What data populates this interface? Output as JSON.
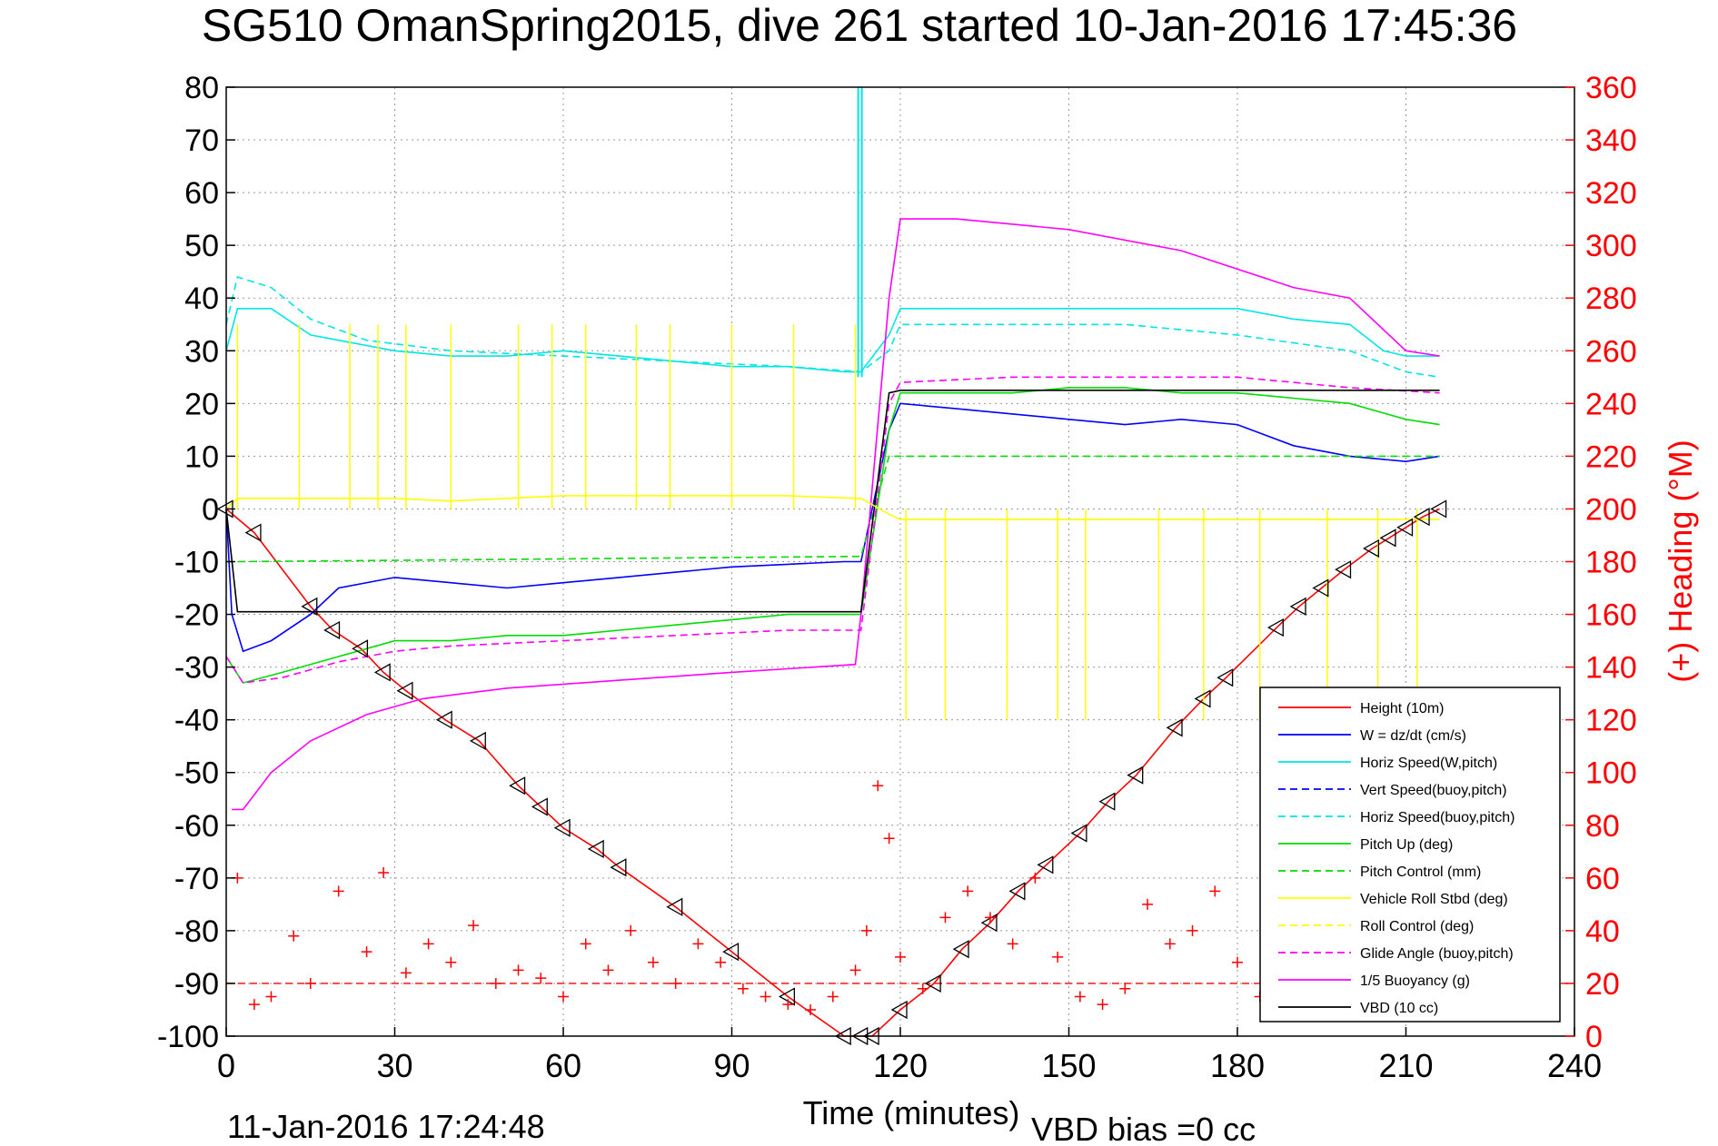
{
  "chart_data": {
    "type": "line",
    "title": "SG510 OmanSpring2015, dive 261 started 10-Jan-2016 17:45:36",
    "xlabel": "Time (minutes)",
    "ylabel": "",
    "ylabel_right": "(+) Heading (°M)",
    "footer_left": "11-Jan-2016 17:24:48",
    "footer_right": "VBD bias =0 cc",
    "xlim": [
      0,
      240
    ],
    "ylim": [
      -100,
      80
    ],
    "ylim_right": [
      0,
      360
    ],
    "grid": true,
    "legend_position": "bottom-right",
    "x_ticks": [
      "0",
      "30",
      "60",
      "90",
      "120",
      "150",
      "180",
      "210",
      "240"
    ],
    "y_ticks": [
      "80",
      "70",
      "60",
      "50",
      "40",
      "30",
      "20",
      "10",
      "0",
      "-10",
      "-20",
      "-30",
      "-40",
      "-50",
      "-60",
      "-70",
      "-80",
      "-90",
      "-100"
    ],
    "y_ticks_right": [
      "360",
      "340",
      "320",
      "300",
      "280",
      "260",
      "240",
      "220",
      "200",
      "180",
      "160",
      "140",
      "120",
      "100",
      "80",
      "60",
      "40",
      "20",
      "0"
    ],
    "legend": [
      {
        "name": "Height (10m)",
        "color": "#ff0000",
        "style": "solid"
      },
      {
        "name": "W = dz/dt (cm/s)",
        "color": "#0000ff",
        "style": "solid"
      },
      {
        "name": "Horiz Speed(W,pitch)",
        "color": "#00e5e5",
        "style": "solid"
      },
      {
        "name": "Vert Speed(buoy,pitch)",
        "color": "#0000ff",
        "style": "dashed"
      },
      {
        "name": "Horiz Speed(buoy,pitch)",
        "color": "#00e5e5",
        "style": "dashed"
      },
      {
        "name": "Pitch Up (deg)",
        "color": "#00dd00",
        "style": "solid"
      },
      {
        "name": "Pitch Control (mm)",
        "color": "#00dd00",
        "style": "dashed"
      },
      {
        "name": "Vehicle Roll Stbd (deg)",
        "color": "#ffff00",
        "style": "solid"
      },
      {
        "name": "Roll Control (deg)",
        "color": "#ffff00",
        "style": "dashed"
      },
      {
        "name": "Glide Angle (buoy,pitch)",
        "color": "#ff00ff",
        "style": "dashed"
      },
      {
        "name": "1/5 Buoyancy (g)",
        "color": "#ff00ff",
        "style": "solid"
      },
      {
        "name": "VBD (10 cc)",
        "color": "#000000",
        "style": "solid"
      }
    ],
    "series": [
      {
        "name": "Height (10m)",
        "axis": "left",
        "x": [
          0,
          5,
          15,
          19,
          24,
          28,
          32,
          39,
          45,
          52,
          56,
          60,
          66,
          70,
          80,
          90,
          100,
          110,
          113,
          115,
          120,
          126,
          131,
          136,
          141,
          146,
          152,
          157,
          162,
          169,
          174,
          178,
          187,
          191,
          195,
          199,
          204,
          207,
          210,
          213,
          216
        ],
        "y": [
          0,
          -4.5,
          -18.5,
          -23,
          -26.5,
          -31,
          -34.5,
          -40,
          -44,
          -52.5,
          -56.5,
          -60.5,
          -64.5,
          -68,
          -75.5,
          -84,
          -92.5,
          -100,
          -100,
          -100,
          -95,
          -90,
          -83.5,
          -78.5,
          -72.5,
          -67.5,
          -61.5,
          -55.5,
          -50.5,
          -41.5,
          -36,
          -32,
          -22.5,
          -18.5,
          -15,
          -11.5,
          -7.5,
          -5.5,
          -3.5,
          -1.5,
          0
        ]
      },
      {
        "name": "W = dz/dt (cm/s)",
        "axis": "left",
        "x": [
          0,
          1,
          3,
          8,
          15,
          20,
          30,
          40,
          50,
          60,
          70,
          80,
          90,
          100,
          110,
          113,
          118,
          120,
          130,
          140,
          150,
          160,
          170,
          180,
          190,
          200,
          210,
          216
        ],
        "y": [
          0,
          -20,
          -27,
          -25,
          -20,
          -15,
          -13,
          -14,
          -15,
          -14,
          -13,
          -12,
          -11,
          -10.5,
          -10,
          -10,
          15,
          20,
          19,
          18,
          17,
          16,
          17,
          16,
          12,
          10,
          9,
          10
        ]
      },
      {
        "name": "Horiz Speed(W,pitch)",
        "axis": "left",
        "x": [
          0,
          2,
          8,
          15,
          20,
          25,
          30,
          40,
          50,
          60,
          70,
          80,
          90,
          100,
          110,
          113,
          118,
          120,
          130,
          140,
          150,
          160,
          170,
          180,
          190,
          200,
          206,
          210,
          216
        ],
        "y": [
          30,
          38,
          38,
          33,
          32,
          31,
          30,
          29,
          29,
          30,
          29,
          28,
          27,
          27,
          26,
          26,
          33,
          38,
          38,
          38,
          38,
          38,
          38,
          38,
          36,
          35,
          30,
          29,
          29
        ]
      },
      {
        "name": "Horiz Speed(buoy,pitch)",
        "axis": "left",
        "x": [
          0,
          2,
          8,
          15,
          25,
          40,
          60,
          80,
          100,
          113,
          118,
          120,
          140,
          160,
          180,
          200,
          210,
          216
        ],
        "y": [
          35,
          44,
          42,
          36,
          32,
          30,
          29,
          28,
          27,
          26,
          30,
          35,
          35,
          35,
          33,
          30,
          26,
          25
        ]
      },
      {
        "name": "Pitch Up (deg)",
        "axis": "left",
        "x": [
          0,
          3,
          10,
          20,
          30,
          40,
          50,
          60,
          70,
          80,
          90,
          100,
          113,
          118,
          120,
          130,
          140,
          150,
          160,
          170,
          180,
          190,
          200,
          210,
          216
        ],
        "y": [
          -28,
          -33,
          -31,
          -28,
          -25,
          -25,
          -24,
          -24,
          -23,
          -22,
          -21,
          -20,
          -20,
          15,
          22,
          22,
          22,
          23,
          23,
          22,
          22,
          21,
          20,
          17,
          16
        ]
      },
      {
        "name": "Pitch Control (mm)",
        "axis": "left",
        "x": [
          0,
          2,
          113,
          118,
          120,
          216
        ],
        "y": [
          -10,
          -10,
          -9,
          10,
          10,
          10
        ]
      },
      {
        "name": "Glide Angle (buoy,pitch)",
        "axis": "left",
        "x": [
          0,
          3,
          10,
          20,
          30,
          40,
          60,
          80,
          100,
          113,
          118,
          120,
          140,
          160,
          180,
          200,
          216
        ],
        "y": [
          -28,
          -33,
          -32,
          -29,
          -27,
          -26,
          -25,
          -24,
          -23,
          -23,
          20,
          24,
          25,
          25,
          25,
          23,
          22
        ]
      },
      {
        "name": "1/5 Buoyancy (g)",
        "axis": "left",
        "x": [
          1,
          3,
          8,
          15,
          25,
          35,
          50,
          70,
          90,
          112,
          113,
          118,
          120,
          130,
          150,
          170,
          190,
          200,
          210,
          216
        ],
        "y": [
          -57,
          -57,
          -50,
          -44,
          -39,
          -36,
          -34,
          -32.5,
          -31,
          -29.5,
          -20,
          40,
          55,
          55,
          53,
          49,
          42,
          40,
          30,
          29
        ]
      },
      {
        "name": "VBD (10 cc)",
        "axis": "left",
        "x": [
          0,
          2,
          112,
          113,
          118,
          120,
          216
        ],
        "y": [
          0,
          -19.5,
          -19.5,
          -19.5,
          22,
          22.5,
          22.5
        ]
      },
      {
        "name": "Vehicle Roll Stbd (deg)",
        "axis": "left",
        "x": [
          0,
          2,
          10,
          20,
          30,
          40,
          60,
          80,
          100,
          112,
          113,
          118,
          120,
          140,
          160,
          180,
          200,
          216
        ],
        "y": [
          0,
          2,
          2,
          2,
          2,
          1.5,
          2.5,
          2.5,
          2.5,
          2,
          2,
          -1,
          -2,
          -2,
          -2,
          -2,
          -2,
          -2
        ]
      },
      {
        "name": "Heading",
        "axis": "right",
        "x": [
          2,
          5,
          8,
          12,
          15,
          20,
          25,
          28,
          32,
          36,
          40,
          44,
          48,
          52,
          56,
          60,
          64,
          68,
          72,
          76,
          80,
          84,
          88,
          92,
          96,
          100,
          104,
          108,
          112,
          114,
          116,
          118,
          120,
          124,
          128,
          132,
          136,
          140,
          144,
          148,
          152,
          156,
          160,
          164,
          168,
          172,
          176,
          180,
          184,
          188,
          192,
          196,
          200,
          204,
          208,
          212
        ],
        "y": [
          60,
          12,
          15,
          38,
          20,
          55,
          32,
          62,
          24,
          35,
          28,
          42,
          20,
          25,
          22,
          15,
          35,
          25,
          40,
          28,
          20,
          35,
          28,
          18,
          15,
          12,
          10,
          15,
          25,
          40,
          95,
          75,
          30,
          18,
          45,
          55,
          45,
          35,
          60,
          30,
          15,
          12,
          18,
          50,
          35,
          40,
          55,
          28,
          15,
          45,
          30,
          40,
          20,
          45,
          35,
          10
        ]
      }
    ]
  }
}
